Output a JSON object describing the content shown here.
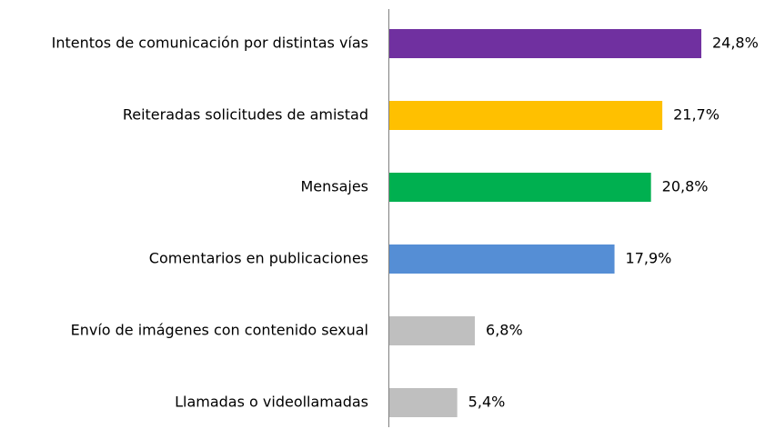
{
  "chart_data": {
    "type": "bar",
    "orientation": "horizontal",
    "categories": [
      "Intentos de comunicación por distintas vías",
      "Reiteradas solicitudes de amistad",
      "Mensajes",
      "Comentarios en publicaciones",
      "Envío de imágenes con contenido sexual",
      "Llamadas o videollamadas"
    ],
    "values": [
      24.8,
      21.7,
      20.8,
      17.9,
      6.8,
      5.4
    ],
    "value_labels": [
      "24,8%",
      "21,7%",
      "20,8%",
      "17,9%",
      "6,8%",
      "5,4%"
    ],
    "colors": [
      "#7030a0",
      "#ffc000",
      "#00b050",
      "#558ed5",
      "#bfbfbf",
      "#bfbfbf"
    ]
  }
}
